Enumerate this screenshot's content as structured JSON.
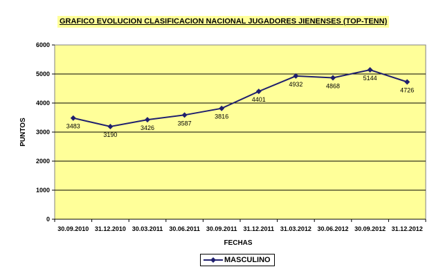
{
  "chart_data": {
    "type": "line",
    "title": "GRAFICO EVOLUCION CLASIFICACION NACIONAL JUGADORES JIENENSES (TOP-TENN)",
    "xlabel": "FECHAS",
    "ylabel": "PUNTOS",
    "ylim": [
      0,
      6000
    ],
    "yticks": [
      0,
      1000,
      2000,
      3000,
      4000,
      5000,
      6000
    ],
    "grid": true,
    "legend_position": "bottom",
    "categories": [
      "30.09.2010",
      "31.12.2010",
      "30.03.2011",
      "30.06.2011",
      "30.09.2011",
      "31.12.2011",
      "31.03.2012",
      "30.06.2012",
      "30.09.2012",
      "31.12.2012"
    ],
    "series": [
      {
        "name": "MASCULINO",
        "values": [
          3483,
          3190,
          3426,
          3587,
          3816,
          4401,
          4932,
          4868,
          5144,
          4726
        ]
      }
    ],
    "colors": {
      "plot_background": "#ffff99",
      "line": "#1f1f6e",
      "title_background": "#ffff99"
    }
  }
}
